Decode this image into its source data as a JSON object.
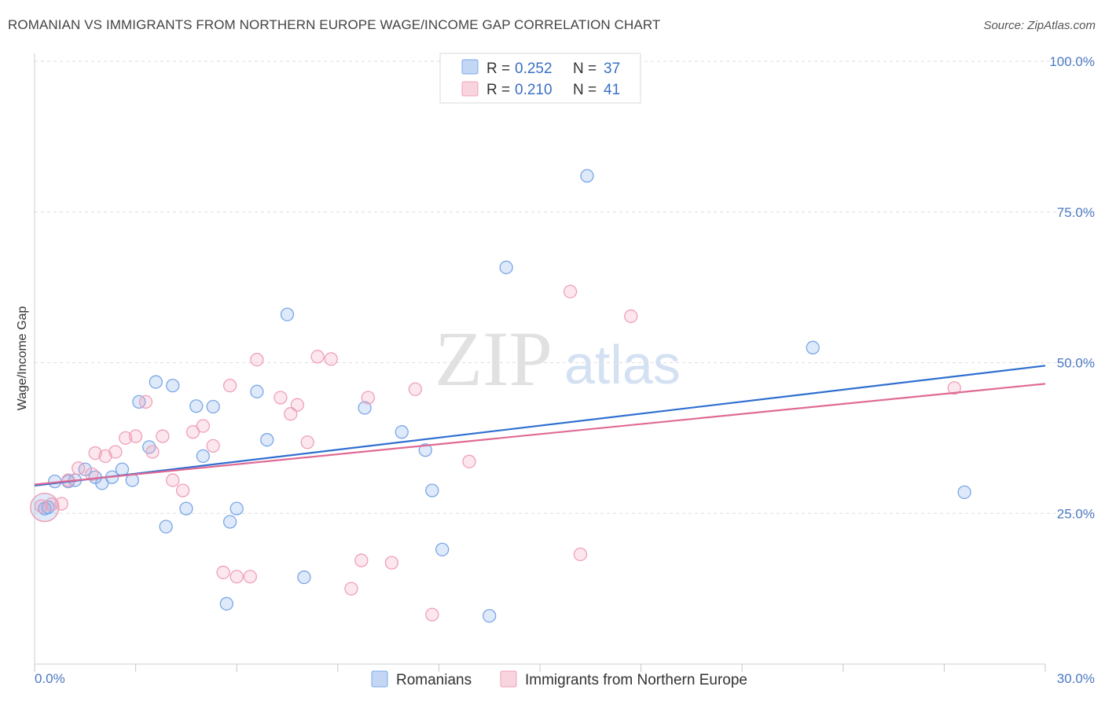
{
  "header": {
    "title": "ROMANIAN VS IMMIGRANTS FROM NORTHERN EUROPE WAGE/INCOME GAP CORRELATION CHART",
    "source": "Source: ZipAtlas.com"
  },
  "watermark": {
    "zip": "ZIP",
    "atlas": "atlas"
  },
  "legend": {
    "rows": [
      {
        "r_label": "R =",
        "r_value": "0.252",
        "n_label": "N =",
        "n_value": "37",
        "color": "#7aa7e8"
      },
      {
        "r_label": "R =",
        "r_value": "0.210",
        "n_label": "N =",
        "n_value": "41",
        "color": "#f0a0b8"
      }
    ]
  },
  "bottom_legend": {
    "items": [
      {
        "label": "Romanians",
        "color": "#7aa7e8"
      },
      {
        "label": "Immigrants from Northern Europe",
        "color": "#f0a0b8"
      }
    ]
  },
  "chart_data": {
    "type": "scatter",
    "title": "ROMANIAN VS IMMIGRANTS FROM NORTHERN EUROPE WAGE/INCOME GAP CORRELATION CHART",
    "xlabel": "",
    "ylabel": "Wage/Income Gap",
    "xlim": [
      0,
      30
    ],
    "ylim": [
      0,
      100
    ],
    "x_tick_labels": [
      "0.0%",
      "30.0%"
    ],
    "y_tick_labels": [
      "25.0%",
      "50.0%",
      "75.0%",
      "100.0%"
    ],
    "y_ticks": [
      25,
      50,
      75,
      100
    ],
    "grid": true,
    "legend_position": "top-center",
    "series": [
      {
        "name": "Romanians",
        "color": "#7aa7e8",
        "line_color": "#2f6fd0",
        "trend": [
          [
            0,
            29.6
          ],
          [
            30,
            49.5
          ]
        ],
        "points": [
          [
            0.3,
            25.8
          ],
          [
            0.6,
            30.3
          ],
          [
            1.0,
            30.3
          ],
          [
            1.2,
            30.5
          ],
          [
            1.5,
            32.3
          ],
          [
            1.8,
            31.0
          ],
          [
            2.0,
            30.0
          ],
          [
            2.3,
            31.0
          ],
          [
            2.6,
            32.3
          ],
          [
            2.9,
            30.5
          ],
          [
            3.1,
            43.5
          ],
          [
            3.4,
            36.0
          ],
          [
            3.6,
            46.8
          ],
          [
            3.9,
            22.8
          ],
          [
            4.1,
            46.2
          ],
          [
            4.5,
            25.8
          ],
          [
            4.8,
            42.8
          ],
          [
            5.0,
            34.5
          ],
          [
            5.3,
            42.7
          ],
          [
            5.7,
            10.0
          ],
          [
            5.8,
            23.6
          ],
          [
            6.0,
            25.8
          ],
          [
            6.6,
            45.2
          ],
          [
            6.9,
            37.2
          ],
          [
            7.5,
            58.0
          ],
          [
            8.0,
            14.4
          ],
          [
            9.8,
            42.5
          ],
          [
            10.9,
            38.5
          ],
          [
            11.6,
            35.5
          ],
          [
            11.8,
            28.8
          ],
          [
            12.1,
            19.0
          ],
          [
            13.5,
            8.0
          ],
          [
            14.0,
            65.8
          ],
          [
            16.4,
            81.0
          ],
          [
            23.1,
            52.5
          ],
          [
            27.6,
            28.5
          ],
          [
            0.4,
            26.0
          ]
        ]
      },
      {
        "name": "Immigrants from Northern Europe",
        "color": "#f0a0b8",
        "line_color": "#e06a95",
        "trend": [
          [
            0,
            29.8
          ],
          [
            30,
            46.5
          ]
        ],
        "points": [
          [
            0.2,
            26.2
          ],
          [
            0.5,
            26.5
          ],
          [
            0.8,
            26.6
          ],
          [
            1.0,
            30.5
          ],
          [
            1.3,
            32.5
          ],
          [
            1.7,
            31.5
          ],
          [
            1.8,
            35.0
          ],
          [
            2.1,
            34.5
          ],
          [
            2.4,
            35.2
          ],
          [
            2.7,
            37.5
          ],
          [
            3.0,
            37.8
          ],
          [
            3.3,
            43.5
          ],
          [
            3.5,
            35.2
          ],
          [
            3.8,
            37.8
          ],
          [
            4.1,
            30.5
          ],
          [
            4.4,
            28.8
          ],
          [
            4.7,
            38.5
          ],
          [
            5.0,
            39.5
          ],
          [
            5.3,
            36.2
          ],
          [
            5.6,
            15.2
          ],
          [
            5.8,
            46.2
          ],
          [
            6.0,
            14.5
          ],
          [
            6.4,
            14.5
          ],
          [
            6.6,
            50.5
          ],
          [
            7.3,
            44.2
          ],
          [
            7.6,
            41.5
          ],
          [
            7.8,
            43.0
          ],
          [
            8.1,
            36.8
          ],
          [
            8.4,
            51.0
          ],
          [
            8.8,
            50.6
          ],
          [
            9.4,
            12.5
          ],
          [
            9.7,
            17.2
          ],
          [
            9.9,
            44.2
          ],
          [
            10.6,
            16.8
          ],
          [
            11.3,
            45.6
          ],
          [
            11.8,
            8.2
          ],
          [
            12.9,
            33.6
          ],
          [
            15.9,
            61.8
          ],
          [
            16.2,
            18.2
          ],
          [
            17.7,
            57.7
          ],
          [
            27.3,
            45.8
          ]
        ]
      }
    ]
  }
}
